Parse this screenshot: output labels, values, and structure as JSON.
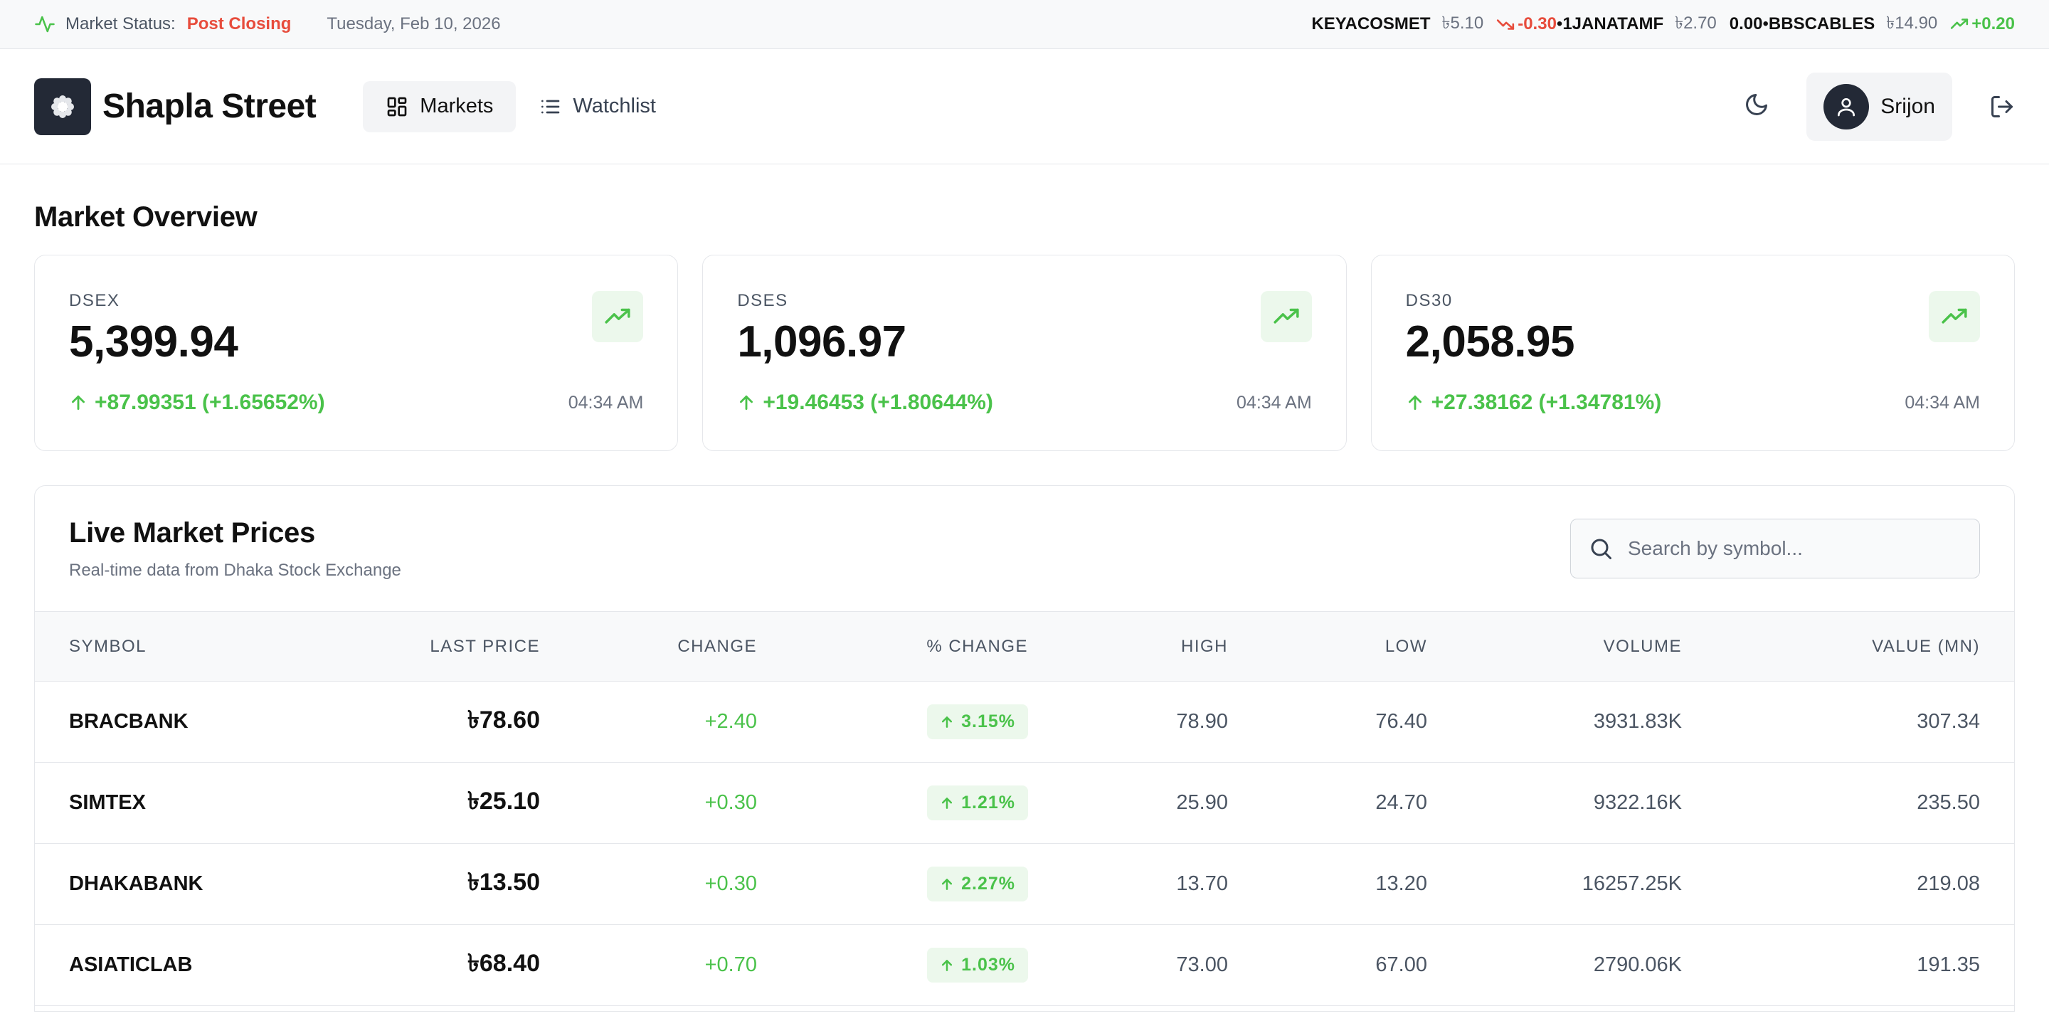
{
  "status_bar": {
    "label": "Market Status:",
    "status": "Post Closing",
    "date": "Tuesday, Feb 10, 2026",
    "ticker": [
      {
        "symbol": "KEYACOSMET",
        "price": "৳5.10",
        "change": "-0.30",
        "direction": "down"
      },
      {
        "symbol": "1JANATAMF",
        "price": "৳2.70",
        "change": "0.00",
        "direction": "flat"
      },
      {
        "symbol": "BBSCABLES",
        "price": "৳14.90",
        "change": "+0.20",
        "direction": "up"
      }
    ],
    "separator": "•"
  },
  "header": {
    "brand": "Shapla Street",
    "nav": [
      {
        "label": "Markets",
        "icon": "grid-icon",
        "active": true
      },
      {
        "label": "Watchlist",
        "icon": "list-icon",
        "active": false
      }
    ],
    "user_name": "Srijon"
  },
  "overview": {
    "title": "Market Overview",
    "cards": [
      {
        "index": "DSEX",
        "value": "5,399.94",
        "change": "+87.99351 (+1.65652%)",
        "time": "04:34 AM"
      },
      {
        "index": "DSES",
        "value": "1,096.97",
        "change": "+19.46453 (+1.80644%)",
        "time": "04:34 AM"
      },
      {
        "index": "DS30",
        "value": "2,058.95",
        "change": "+27.38162 (+1.34781%)",
        "time": "04:34 AM"
      }
    ]
  },
  "live": {
    "title": "Live Market Prices",
    "subtitle": "Real-time data from Dhaka Stock Exchange",
    "search_placeholder": "Search by symbol...",
    "columns": [
      "SYMBOL",
      "LAST PRICE",
      "CHANGE",
      "% CHANGE",
      "HIGH",
      "LOW",
      "VOLUME",
      "VALUE (MN)"
    ],
    "rows": [
      {
        "symbol": "BRACBANK",
        "last": "৳78.60",
        "change": "+2.40",
        "pct": "3.15%",
        "high": "78.90",
        "low": "76.40",
        "volume": "3931.83K",
        "value": "307.34"
      },
      {
        "symbol": "SIMTEX",
        "last": "৳25.10",
        "change": "+0.30",
        "pct": "1.21%",
        "high": "25.90",
        "low": "24.70",
        "volume": "9322.16K",
        "value": "235.50"
      },
      {
        "symbol": "DHAKABANK",
        "last": "৳13.50",
        "change": "+0.30",
        "pct": "2.27%",
        "high": "13.70",
        "low": "13.20",
        "volume": "16257.25K",
        "value": "219.08"
      },
      {
        "symbol": "ASIATICLAB",
        "last": "৳68.40",
        "change": "+0.70",
        "pct": "1.03%",
        "high": "73.00",
        "low": "67.00",
        "volume": "2790.06K",
        "value": "191.35"
      }
    ]
  },
  "colors": {
    "positive": "#4ac24a",
    "negative": "#e74c3c",
    "dark": "#232936"
  }
}
